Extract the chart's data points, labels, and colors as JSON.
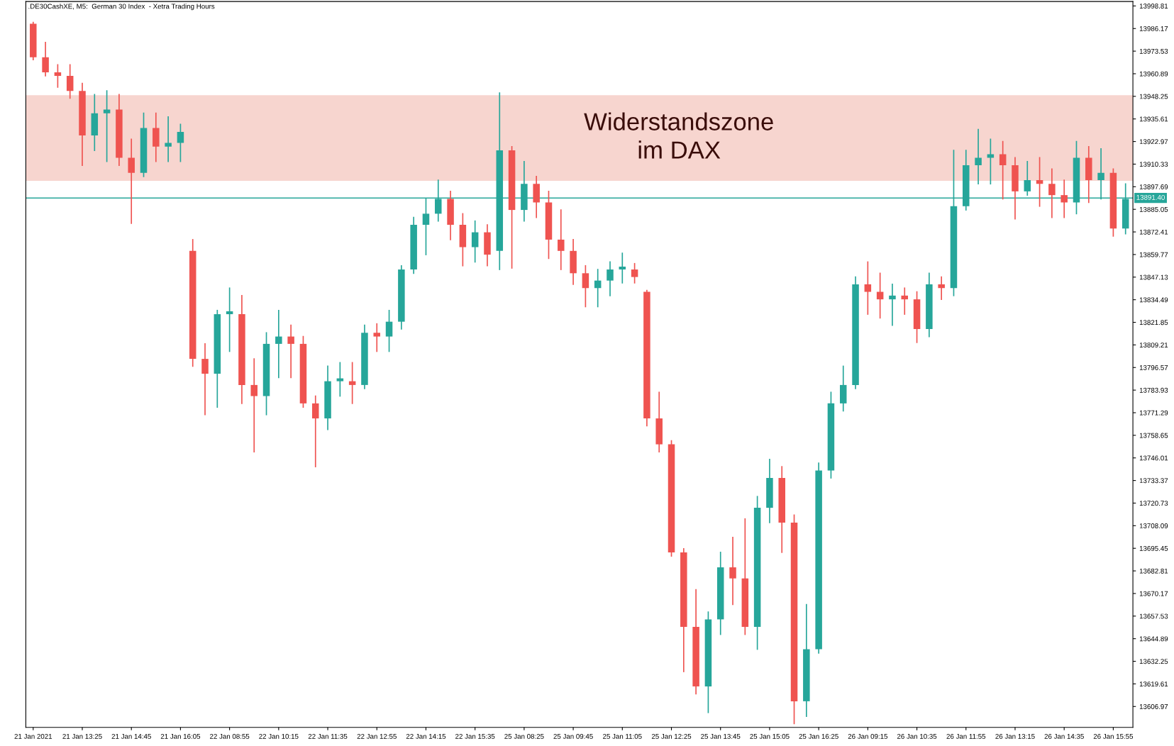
{
  "chart_data": {
    "type": "candlestick",
    "title": ".DE30CashXE, M5:  German 30 Index  - Xetra Trading Hours",
    "categories": [
      "21 Jan 2021",
      null,
      null,
      null,
      "21 Jan 13:25",
      null,
      null,
      null,
      "21 Jan 14:45",
      null,
      null,
      null,
      "21 Jan 16:05",
      null,
      null,
      null,
      "22 Jan 08:55",
      null,
      null,
      null,
      "22 Jan 10:15",
      null,
      null,
      null,
      "22 Jan 11:35",
      null,
      null,
      null,
      "22 Jan 12:55",
      null,
      null,
      null,
      "22 Jan 14:15",
      null,
      null,
      null,
      "22 Jan 15:35",
      null,
      null,
      null,
      "25 Jan 08:25",
      null,
      null,
      null,
      "25 Jan 09:45",
      null,
      null,
      null,
      "25 Jan 11:05",
      null,
      null,
      null,
      "25 Jan 12:25",
      null,
      null,
      null,
      "25 Jan 13:45",
      null,
      null,
      null,
      "25 Jan 15:05",
      null,
      null,
      null,
      "25 Jan 16:25",
      null,
      null,
      null,
      "26 Jan 09:15",
      null,
      null,
      null,
      "26 Jan 10:35",
      null,
      null,
      null,
      "26 Jan 11:55",
      null,
      null,
      null,
      "26 Jan 13:15",
      null,
      null,
      null,
      "26 Jan 14:35",
      null,
      null,
      null,
      "26 Jan 15:55",
      null
    ],
    "ohlc": [
      [
        13988.8,
        13989.6,
        13968.8,
        13970.1
      ],
      [
        13970.1,
        13978.4,
        13959.7,
        13961.7
      ],
      [
        13961.7,
        13965.9,
        13953.4,
        13959.7
      ],
      [
        13959.7,
        13965.9,
        13947.2,
        13951.3
      ],
      [
        13951.3,
        13955.5,
        13909.7,
        13926.4
      ],
      [
        13926.4,
        13949.2,
        13918.0,
        13938.8
      ],
      [
        13938.8,
        13951.3,
        13911.8,
        13940.9
      ],
      [
        13940.9,
        13949.2,
        13909.7,
        13913.9
      ],
      [
        13913.9,
        13924.3,
        13877.2,
        13905.5
      ],
      [
        13905.5,
        13938.8,
        13903.4,
        13930.5
      ],
      [
        13930.5,
        13938.8,
        13911.8,
        13920.1
      ],
      [
        13920.1,
        13936.8,
        13911.8,
        13922.2
      ],
      [
        13922.2,
        13932.6,
        13911.8,
        13928.4
      ],
      [
        13861.8,
        13868.1,
        13797.3,
        13801.4
      ],
      [
        13801.4,
        13809.8,
        13770.2,
        13793.1
      ],
      [
        13793.1,
        13828.5,
        13774.4,
        13826.4
      ],
      [
        13826.4,
        13841.0,
        13805.6,
        13828.0
      ],
      [
        13826.4,
        13836.8,
        13776.5,
        13786.8
      ],
      [
        13786.8,
        13801.4,
        13749.4,
        13780.6
      ],
      [
        13780.6,
        13816.0,
        13770.2,
        13809.8
      ],
      [
        13809.8,
        13828.5,
        13791.0,
        13813.9
      ],
      [
        13813.9,
        13820.2,
        13791.0,
        13809.8
      ],
      [
        13809.8,
        13813.9,
        13774.4,
        13776.5
      ],
      [
        13776.5,
        13780.6,
        13741.1,
        13768.1
      ],
      [
        13768.1,
        13797.3,
        13761.9,
        13788.9
      ],
      [
        13788.9,
        13799.3,
        13780.6,
        13790.5
      ],
      [
        13788.9,
        13799.3,
        13776.5,
        13786.8
      ],
      [
        13786.8,
        13820.2,
        13784.8,
        13816.0
      ],
      [
        13816.0,
        13821.0,
        13805.6,
        13813.9
      ],
      [
        13813.9,
        13828.5,
        13805.6,
        13822.2
      ],
      [
        13822.2,
        13853.5,
        13818.1,
        13851.4
      ],
      [
        13851.4,
        13880.5,
        13849.3,
        13876.4
      ],
      [
        13876.4,
        13890.9,
        13859.7,
        13882.6
      ],
      [
        13882.6,
        13901.4,
        13878.5,
        13890.9
      ],
      [
        13890.9,
        13895.1,
        13868.1,
        13876.4
      ],
      [
        13876.4,
        13882.6,
        13853.5,
        13863.9
      ],
      [
        13863.9,
        13878.5,
        13855.6,
        13872.2
      ],
      [
        13872.2,
        13876.4,
        13853.5,
        13859.7
      ],
      [
        13861.8,
        13950.1,
        13851.4,
        13918.0
      ],
      [
        13918.0,
        13920.1,
        13852.2,
        13884.7
      ],
      [
        13884.7,
        13911.8,
        13878.5,
        13899.3
      ],
      [
        13899.3,
        13903.4,
        13880.5,
        13888.9
      ],
      [
        13888.9,
        13895.1,
        13857.6,
        13868.1
      ],
      [
        13868.1,
        13884.7,
        13851.4,
        13861.8
      ],
      [
        13861.8,
        13868.1,
        13843.1,
        13849.3
      ],
      [
        13849.3,
        13853.5,
        13830.6,
        13841.0
      ],
      [
        13841.0,
        13851.4,
        13830.6,
        13845.2
      ],
      [
        13845.2,
        13855.6,
        13836.8,
        13851.4
      ],
      [
        13851.4,
        13860.5,
        13843.9,
        13853.0
      ],
      [
        13851.4,
        13854.7,
        13843.9,
        13847.2
      ],
      [
        13838.9,
        13839.7,
        13764.0,
        13768.1
      ],
      [
        13768.1,
        13782.7,
        13749.4,
        13753.6
      ],
      [
        13753.6,
        13755.6,
        13691.1,
        13693.2
      ],
      [
        13693.2,
        13695.2,
        13626.5,
        13651.5
      ],
      [
        13651.5,
        13672.3,
        13614.1,
        13618.2
      ],
      [
        13618.2,
        13659.8,
        13603.6,
        13655.7
      ],
      [
        13655.7,
        13693.2,
        13647.3,
        13684.8
      ],
      [
        13684.8,
        13701.5,
        13664.0,
        13678.6
      ],
      [
        13678.6,
        13711.9,
        13647.3,
        13651.5
      ],
      [
        13651.5,
        13724.4,
        13639.0,
        13718.1
      ],
      [
        13718.1,
        13745.2,
        13709.8,
        13734.8
      ],
      [
        13734.8,
        13741.1,
        13693.2,
        13709.8
      ],
      [
        13709.8,
        13714.0,
        13597.4,
        13609.9
      ],
      [
        13609.9,
        13664.0,
        13601.5,
        13639.0
      ],
      [
        13639.0,
        13743.1,
        13636.9,
        13739.0
      ],
      [
        13739.0,
        13782.7,
        13734.8,
        13776.5
      ],
      [
        13776.5,
        13797.3,
        13772.3,
        13786.8
      ],
      [
        13786.8,
        13847.2,
        13784.8,
        13843.1
      ],
      [
        13843.1,
        13855.6,
        13826.4,
        13838.9
      ],
      [
        13838.9,
        13849.3,
        13824.3,
        13834.7
      ],
      [
        13834.7,
        13843.1,
        13820.2,
        13836.8
      ],
      [
        13836.8,
        13841.0,
        13826.4,
        13834.7
      ],
      [
        13834.7,
        13838.9,
        13810.6,
        13818.1
      ],
      [
        13818.1,
        13849.3,
        13813.9,
        13843.1
      ],
      [
        13843.1,
        13847.2,
        13834.7,
        13841.0
      ],
      [
        13841.0,
        13918.0,
        13836.8,
        13886.8
      ],
      [
        13886.8,
        13918.0,
        13884.7,
        13909.7
      ],
      [
        13909.7,
        13929.7,
        13899.3,
        13913.9
      ],
      [
        13913.9,
        13924.3,
        13899.3,
        13915.9
      ],
      [
        13915.9,
        13923.0,
        13890.9,
        13909.7
      ],
      [
        13909.7,
        13913.9,
        13879.7,
        13895.1
      ],
      [
        13895.1,
        13911.8,
        13893.0,
        13901.4
      ],
      [
        13901.4,
        13913.9,
        13886.8,
        13899.3
      ],
      [
        13899.3,
        13907.6,
        13880.5,
        13893.0
      ],
      [
        13893.0,
        13901.4,
        13880.5,
        13888.9
      ],
      [
        13888.9,
        13923.0,
        13882.6,
        13913.9
      ],
      [
        13913.9,
        13920.1,
        13888.9,
        13901.4
      ],
      [
        13901.4,
        13918.9,
        13890.9,
        13905.5
      ],
      [
        13905.5,
        13907.6,
        13870.1,
        13874.3
      ],
      [
        13874.3,
        13899.3,
        13871.4,
        13890.9
      ]
    ],
    "colors": [
      "#ef5350",
      "#ef5350",
      "#ef5350",
      "#ef5350",
      "#ef5350",
      "#26a69a",
      "#26a69a",
      "#ef5350",
      "#ef5350",
      "#26a69a",
      "#ef5350",
      "#26a69a",
      "#26a69a",
      "#ef5350",
      "#ef5350",
      "#26a69a",
      "#26a69a",
      "#ef5350",
      "#ef5350",
      "#26a69a",
      "#26a69a",
      "#ef5350",
      "#ef5350",
      "#ef5350",
      "#26a69a",
      "#26a69a",
      "#ef5350",
      "#26a69a",
      "#ef5350",
      "#26a69a",
      "#26a69a",
      "#26a69a",
      "#26a69a",
      "#26a69a",
      "#ef5350",
      "#ef5350",
      "#26a69a",
      "#ef5350",
      "#26a69a",
      "#ef5350",
      "#26a69a",
      "#ef5350",
      "#ef5350",
      "#ef5350",
      "#ef5350",
      "#ef5350",
      "#26a69a",
      "#26a69a",
      "#26a69a",
      "#ef5350",
      "#ef5350",
      "#ef5350",
      "#ef5350",
      "#ef5350",
      "#ef5350",
      "#26a69a",
      "#26a69a",
      "#ef5350",
      "#ef5350",
      "#26a69a",
      "#26a69a",
      "#ef5350",
      "#ef5350",
      "#26a69a",
      "#26a69a",
      "#26a69a",
      "#26a69a",
      "#26a69a",
      "#ef5350",
      "#ef5350",
      "#26a69a",
      "#ef5350",
      "#ef5350",
      "#26a69a",
      "#ef5350",
      "#26a69a",
      "#26a69a",
      "#26a69a",
      "#26a69a",
      "#ef5350",
      "#ef5350",
      "#26a69a",
      "#ef5350",
      "#ef5350",
      "#ef5350",
      "#26a69a",
      "#ef5350",
      "#26a69a",
      "#ef5350",
      "#26a69a"
    ],
    "ylim": [
      13595.3,
      14001.3
    ],
    "yticks": [
      13998.81,
      13986.17,
      13973.53,
      13960.89,
      13948.25,
      13935.61,
      13922.97,
      13910.33,
      13897.69,
      13885.05,
      13872.41,
      13859.77,
      13847.13,
      13834.49,
      13821.85,
      13809.21,
      13796.57,
      13783.93,
      13771.29,
      13758.65,
      13746.01,
      13733.37,
      13720.73,
      13708.09,
      13695.45,
      13682.81,
      13670.17,
      13657.53,
      13644.89,
      13632.25,
      13619.61,
      13606.97
    ],
    "bands": [
      {
        "axis": "y",
        "from": 13901.0,
        "to": 13948.9,
        "label": "Widerstandszone\nim DAX",
        "color": "#f7d5cf"
      }
    ],
    "ref_lines": [
      {
        "axis": "y",
        "value": 13891.4,
        "label": "13891.40",
        "color": "#26a69a"
      }
    ],
    "grid": false,
    "legend": false
  }
}
